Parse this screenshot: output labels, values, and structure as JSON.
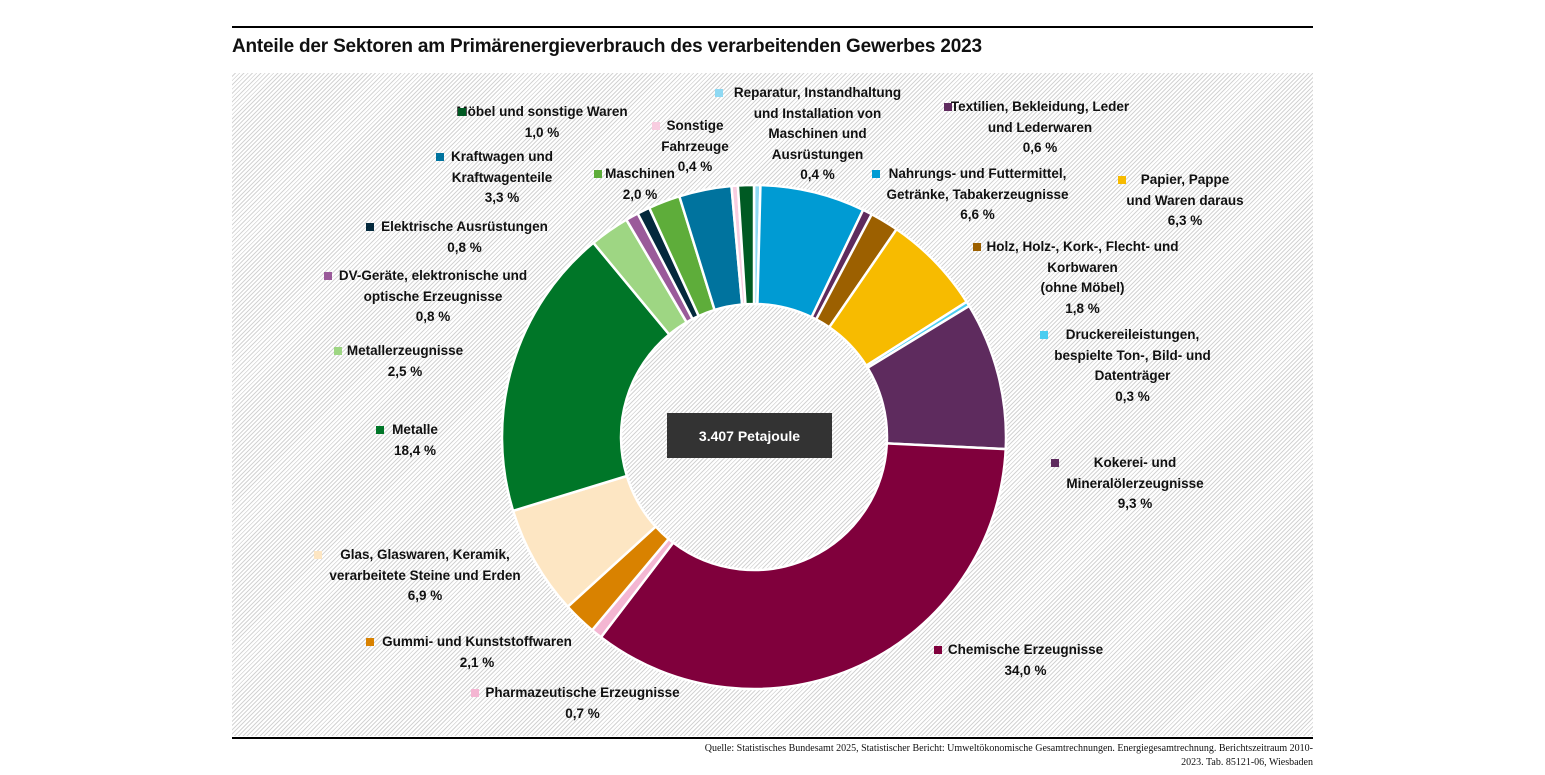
{
  "title": "Anteile der Sektoren am Primärenergieverbrauch des verarbeitenden Gewerbes 2023",
  "center_label": "3.407 Petajoule",
  "source": {
    "line1": "Quelle: Statistisches Bundesamt 2025, Statistischer Bericht: Umweltökonomische Gesamtrechnungen. Energiegesamtrechnung. Berichtszeitraum 2010-",
    "line2": "2023. Tab. 85121-06, Wiesbaden"
  },
  "chart_data": {
    "type": "pie",
    "variant": "donut",
    "title": "Anteile der Sektoren am Primärenergieverbrauch des verarbeitenden Gewerbes 2023",
    "total": "3.407 Petajoule",
    "unit": "%",
    "start": "top",
    "direction": "clockwise",
    "slices": [
      {
        "name": "Reparatur, Instandhaltung und Installation von Maschinen und Ausrüstungen",
        "lines": [
          "Reparatur, Instandhaltung",
          "und Installation von",
          "Maschinen und",
          "Ausrüstungen"
        ],
        "value": 0.4,
        "value_label": "0,4 %",
        "color": "#8fd9f3"
      },
      {
        "name": "Nahrungs- und Futtermittel, Getränke, Tabakerzeugnisse",
        "lines": [
          "Nahrungs- und Futtermittel,",
          "Getränke, Tabakerzeugnisse"
        ],
        "value": 6.6,
        "value_label": "6,6 %",
        "color": "#009bd3"
      },
      {
        "name": "Textilien, Bekleidung, Leder und Lederwaren",
        "lines": [
          "Textilien, Bekleidung, Leder",
          "und Lederwaren"
        ],
        "value": 0.6,
        "value_label": "0,6 %",
        "color": "#5e2b5e"
      },
      {
        "name": "Holz, Holz-, Kork-, Flecht- und Korbwaren (ohne Möbel)",
        "lines": [
          "Holz, Holz-, Kork-, Flecht- und",
          "Korbwaren",
          "(ohne Möbel)"
        ],
        "value": 1.8,
        "value_label": "1,8 %",
        "color": "#9c6000"
      },
      {
        "name": "Papier, Pappe und Waren daraus",
        "lines": [
          "Papier, Pappe",
          "und Waren daraus"
        ],
        "value": 6.3,
        "value_label": "6,3 %",
        "color": "#f7bb00"
      },
      {
        "name": "Druckereileistungen, bespielte Ton-, Bild- und Datenträger",
        "lines": [
          "Druckereileistungen,",
          "bespielte Ton-, Bild- und",
          "Datenträger"
        ],
        "value": 0.3,
        "value_label": "0,3 %",
        "color": "#4ccdf0"
      },
      {
        "name": "Kokerei- und Mineralölerzeugnisse",
        "lines": [
          "Kokerei- und",
          "Mineralölerzeugnisse"
        ],
        "value": 9.3,
        "value_label": "9,3 %",
        "color": "#5e2b5e"
      },
      {
        "name": "Chemische Erzeugnisse",
        "lines": [
          "Chemische Erzeugnisse"
        ],
        "value": 34.0,
        "value_label": "34,0 %",
        "color": "#80003c"
      },
      {
        "name": "Pharmazeutische Erzeugnisse",
        "lines": [
          "Pharmazeutische Erzeugnisse"
        ],
        "value": 0.7,
        "value_label": "0,7 %",
        "color": "#f4b6d2"
      },
      {
        "name": "Gummi- und Kunststoffwaren",
        "lines": [
          "Gummi- und Kunststoffwaren"
        ],
        "value": 2.1,
        "value_label": "2,1 %",
        "color": "#d98200"
      },
      {
        "name": "Glas, Glaswaren, Keramik, verarbeitete Steine und Erden",
        "lines": [
          "Glas, Glaswaren, Keramik,",
          "verarbeitete Steine und Erden"
        ],
        "value": 6.9,
        "value_label": "6,9 %",
        "color": "#fde6c3"
      },
      {
        "name": "Metalle",
        "lines": [
          "Metalle"
        ],
        "value": 18.4,
        "value_label": "18,4 %",
        "color": "#007628"
      },
      {
        "name": "Metallerzeugnisse",
        "lines": [
          "Metallerzeugnisse"
        ],
        "value": 2.5,
        "value_label": "2,5 %",
        "color": "#9ed683"
      },
      {
        "name": "DV-Geräte, elektronische und optische Erzeugnisse",
        "lines": [
          "DV-Geräte, elektronische und",
          "optische Erzeugnisse"
        ],
        "value": 0.8,
        "value_label": "0,8 %",
        "color": "#9a5a9a"
      },
      {
        "name": "Elektrische Ausrüstungen",
        "lines": [
          "Elektrische Ausrüstungen"
        ],
        "value": 0.8,
        "value_label": "0,8 %",
        "color": "#04293c"
      },
      {
        "name": "Maschinen",
        "lines": [
          "Maschinen"
        ],
        "value": 2.0,
        "value_label": "2,0 %",
        "color": "#5ead3a"
      },
      {
        "name": "Kraftwagen und Kraftwagenteile",
        "lines": [
          "Kraftwagen und",
          "Kraftwagenteile"
        ],
        "value": 3.3,
        "value_label": "3,3 %",
        "color": "#00739e"
      },
      {
        "name": "Sonstige Fahrzeuge",
        "lines": [
          "Sonstige",
          "Fahrzeuge"
        ],
        "value": 0.4,
        "value_label": "0,4 %",
        "color": "#f8cde0"
      },
      {
        "name": "Möbel und sonstige Waren",
        "lines": [
          "Möbel und sonstige Waren"
        ],
        "value": 1.0,
        "value_label": "1,0 %",
        "color": "#005a23"
      }
    ]
  }
}
